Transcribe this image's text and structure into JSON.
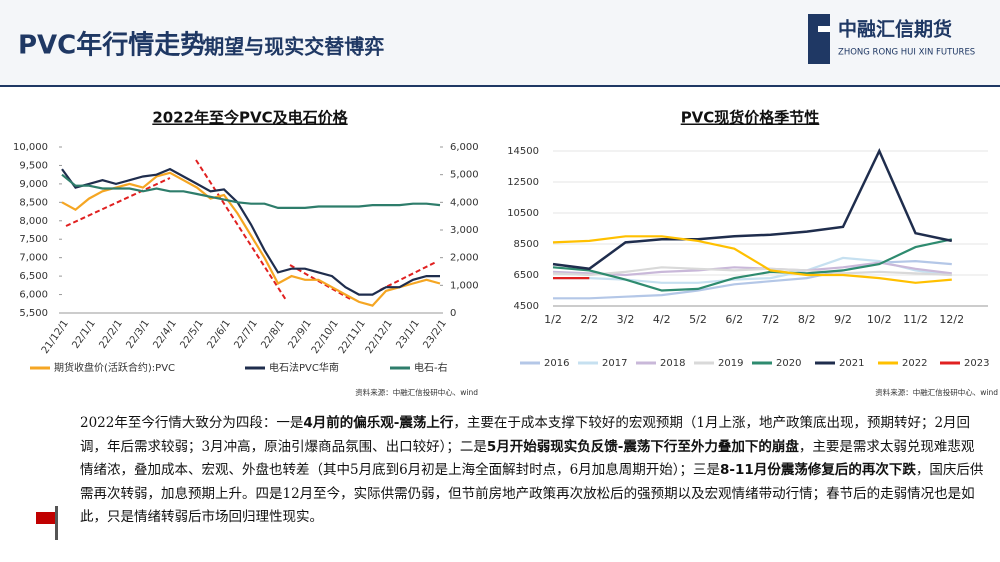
{
  "header": {
    "title": "PVC年行情走势",
    "subtitle": "-期望与现实交替博弈",
    "logo_cn": "中融汇信期货",
    "logo_en": "ZHONG RONG HUI XIN FUTURES"
  },
  "chart_data": [
    {
      "type": "line",
      "title": "2022年至今PVC及电石价格",
      "categories": [
        "21/12/1",
        null,
        "22/1/1",
        null,
        "22/2/1",
        null,
        "22/3/1",
        null,
        "22/4/1",
        null,
        "22/5/1",
        null,
        "22/6/1",
        null,
        "22/7/1",
        null,
        "22/8/1",
        null,
        "22/9/1",
        null,
        "22/10/1",
        null,
        "22/11/1",
        null,
        "22/12/1",
        null,
        "23/1/1",
        null,
        "23/2/1"
      ],
      "ylim": [
        5500,
        10000
      ],
      "yticks": [
        {
          "value": 5500,
          "label": "5,500"
        },
        {
          "value": 6000,
          "label": "6,000"
        },
        {
          "value": 6500,
          "label": "6,500"
        },
        {
          "value": 7000,
          "label": "7,000"
        },
        {
          "value": 7500,
          "label": "7,500"
        },
        {
          "value": 8000,
          "label": "8,000"
        },
        {
          "value": 8500,
          "label": "8,500"
        },
        {
          "value": 9000,
          "label": "9,000"
        },
        {
          "value": 9500,
          "label": "9,500"
        },
        {
          "value": 10000,
          "label": "10,000"
        }
      ],
      "y2lim": [
        0,
        6000
      ],
      "y2ticks": [
        0,
        {
          "value": 1000,
          "label": "1,000"
        },
        {
          "value": 2000,
          "label": "2,000"
        },
        {
          "value": 3000,
          "label": "3,000"
        },
        {
          "value": 4000,
          "label": "4,000"
        },
        {
          "value": 5000,
          "label": "5,000"
        },
        {
          "value": 6000,
          "label": "6,000"
        }
      ],
      "grid": false,
      "legend": "bottom",
      "series": [
        {
          "name": "期货收盘价(活跃合约):PVC",
          "color": "#f5a623",
          "values": [
            8500,
            8300,
            8600,
            8800,
            8900,
            9000,
            8900,
            9200,
            9300,
            9100,
            8900,
            8600,
            8700,
            8200,
            7600,
            7000,
            6300,
            6500,
            6400,
            6400,
            6200,
            6000,
            5800,
            5700,
            6100,
            6200,
            6300,
            6400,
            6300
          ]
        },
        {
          "name": "电石法PVC华南",
          "color": "#1f2d4d",
          "values": [
            9400,
            8900,
            9000,
            9100,
            9000,
            9100,
            9200,
            9250,
            9400,
            9200,
            9000,
            8800,
            8850,
            8500,
            7900,
            7200,
            6600,
            6700,
            6700,
            6600,
            6500,
            6200,
            6000,
            6000,
            6200,
            6200,
            6400,
            6500,
            6500
          ]
        },
        {
          "name": "电石-右",
          "color": "#2e7d6b",
          "axis": "y2",
          "values": [
            5000,
            4600,
            4600,
            4500,
            4500,
            4500,
            4400,
            4500,
            4400,
            4400,
            4300,
            4200,
            4100,
            4000,
            3950,
            3950,
            3800,
            3800,
            3800,
            3850,
            3850,
            3850,
            3850,
            3900,
            3900,
            3900,
            3950,
            3950,
            3900
          ]
        }
      ]
    },
    {
      "type": "line",
      "title": "PVC现货价格季节性",
      "categories": [
        "1/2",
        "2/2",
        "3/2",
        "4/2",
        "5/2",
        "6/2",
        "7/2",
        "8/2",
        "9/2",
        "10/2",
        "11/2",
        "12/2"
      ],
      "ylim": [
        4500,
        14500
      ],
      "yticks": [
        4500,
        6500,
        8500,
        10500,
        12500,
        14500
      ],
      "grid": true,
      "legend": "bottom",
      "series": [
        {
          "name": "2016",
          "color": "#b4c7e7",
          "values": [
            5000,
            5000,
            5100,
            5200,
            5500,
            5900,
            6100,
            6300,
            6800,
            7300,
            7400,
            7200
          ]
        },
        {
          "name": "2017",
          "color": "#c6e0f0",
          "values": [
            6300,
            6300,
            6200,
            6000,
            6000,
            6200,
            6300,
            6800,
            7600,
            7400,
            6800,
            6500
          ]
        },
        {
          "name": "2018",
          "color": "#c9b8d9",
          "values": [
            6700,
            6600,
            6500,
            6700,
            6800,
            7000,
            6900,
            6800,
            7000,
            7300,
            6900,
            6600
          ]
        },
        {
          "name": "2019",
          "color": "#d9d9d9",
          "values": [
            6600,
            6500,
            6700,
            7000,
            6900,
            6800,
            6900,
            6800,
            6600,
            6700,
            6600,
            6500
          ]
        },
        {
          "name": "2020",
          "color": "#2e8b6f",
          "values": [
            7000,
            6800,
            6200,
            5500,
            5600,
            6300,
            6700,
            6600,
            6800,
            7200,
            8300,
            8800
          ]
        },
        {
          "name": "2021",
          "color": "#1f2d4d",
          "values": [
            7200,
            6900,
            8600,
            8800,
            8800,
            9000,
            9100,
            9300,
            9600,
            14500,
            9200,
            8700
          ]
        },
        {
          "name": "2022",
          "color": "#ffc000",
          "values": [
            8600,
            8700,
            9000,
            9000,
            8700,
            8200,
            6800,
            6500,
            6500,
            6300,
            6000,
            6200
          ]
        },
        {
          "name": "2023",
          "color": "#e02020",
          "values": [
            6300,
            6300,
            null,
            null,
            null,
            null,
            null,
            null,
            null,
            null,
            null,
            null
          ]
        }
      ]
    }
  ],
  "sources": [
    "资料来源：中融汇信投研中心、wind",
    "资料来源：中融汇信投研中心、wind"
  ],
  "paragraph": [
    {
      "text": "2022年至今行情大致分为四段：一是",
      "bold": false
    },
    {
      "text": "4月前的偏乐观-震荡上行",
      "bold": true
    },
    {
      "text": "，主要在于成本支撑下较好的宏观预期（1月上涨，地产政策底出现，预期转好；2月回调，年后需求较弱；3月冲高，原油引爆商品氛围、出口较好）；二是",
      "bold": false
    },
    {
      "text": "5月开始弱现实负反馈-震荡下行至外力叠加下的崩盘",
      "bold": true
    },
    {
      "text": "，主要是需求太弱兑现难悲观情绪浓，叠加成本、宏观、外盘也转差（其中5月底到6月初是上海全面解封时点，6月加息周期开始）；三是",
      "bold": false
    },
    {
      "text": "8-11月份震荡修复后的再次下跌",
      "bold": true
    },
    {
      "text": "，国庆后供需再次转弱，加息预期上升。四是12月至今，实际供需仍弱，但节前房地产政策再次放松后的强预期以及宏观情绪带动行情；春节后的走弱情况也是如此，只是情绪转弱后市场回归理性现实。",
      "bold": false
    }
  ]
}
